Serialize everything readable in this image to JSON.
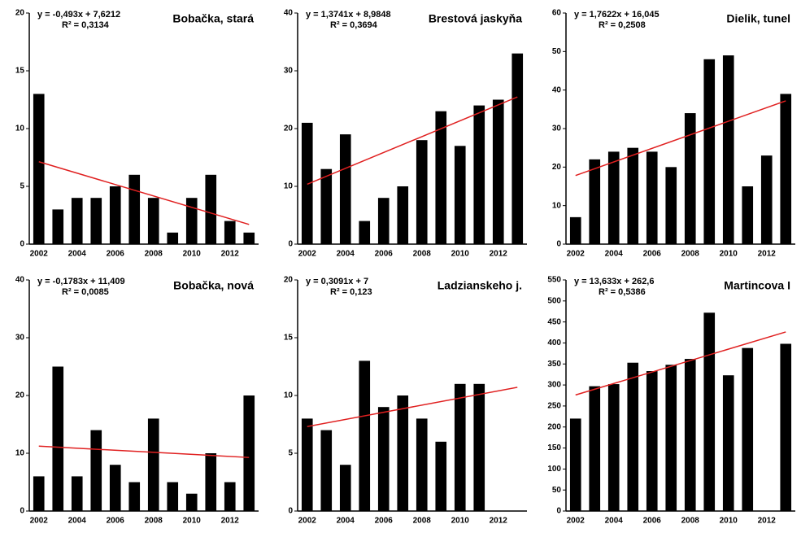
{
  "chart_data": [
    {
      "type": "bar",
      "title": "Bobačka, stará",
      "equation": "y = -0,493x + 7,6212",
      "r2": "R² = 0,3134",
      "categories": [
        "2002",
        null,
        "2004",
        null,
        "2006",
        null,
        "2008",
        null,
        "2010",
        null,
        "2012",
        null
      ],
      "values": [
        13,
        3,
        4,
        4,
        5,
        6,
        4,
        1,
        4,
        6,
        2,
        1
      ],
      "color": "#000000",
      "ylim": [
        0,
        20
      ],
      "yticks": [
        0,
        5,
        10,
        15,
        20
      ],
      "trendline": {
        "slope": -0.493,
        "intercept": 7.6212,
        "color": "#e02020"
      }
    },
    {
      "type": "bar",
      "title": "Brestová jaskyňa",
      "equation": "y = 1,3741x + 8,9848",
      "r2": "R² = 0,3694",
      "categories": [
        "2002",
        null,
        "2004",
        null,
        "2006",
        null,
        "2008",
        null,
        "2010",
        null,
        "2012",
        null
      ],
      "values": [
        21,
        13,
        19,
        4,
        8,
        10,
        18,
        23,
        17,
        24,
        25,
        33
      ],
      "color": "#000000",
      "ylim": [
        0,
        40
      ],
      "yticks": [
        0,
        10,
        20,
        30,
        40
      ],
      "trendline": {
        "slope": 1.3741,
        "intercept": 8.9848,
        "color": "#e02020"
      }
    },
    {
      "type": "bar",
      "title": "Dielik, tunel",
      "equation": "y = 1,7622x + 16,045",
      "r2": "R² = 0,2508",
      "categories": [
        "2002",
        null,
        "2004",
        null,
        "2006",
        null,
        "2008",
        null,
        "2010",
        null,
        "2012",
        null
      ],
      "values": [
        7,
        22,
        24,
        25,
        24,
        20,
        34,
        48,
        49,
        15,
        23,
        39
      ],
      "color": "#000000",
      "ylim": [
        0,
        60
      ],
      "yticks": [
        0,
        10,
        20,
        30,
        40,
        50,
        60
      ],
      "trendline": {
        "slope": 1.7622,
        "intercept": 16.045,
        "color": "#e02020"
      }
    },
    {
      "type": "bar",
      "title": "Bobačka, nová",
      "equation": "y = -0,1783x + 11,409",
      "r2": "R² = 0,0085",
      "categories": [
        "2002",
        null,
        "2004",
        null,
        "2006",
        null,
        "2008",
        null,
        "2010",
        null,
        "2012",
        null
      ],
      "values": [
        6,
        25,
        6,
        14,
        8,
        5,
        16,
        5,
        3,
        10,
        5,
        20
      ],
      "color": "#000000",
      "ylim": [
        0,
        40
      ],
      "yticks": [
        0,
        10,
        20,
        30,
        40
      ],
      "trendline": {
        "slope": -0.1783,
        "intercept": 11.409,
        "color": "#e02020"
      }
    },
    {
      "type": "bar",
      "title": "Ladzianskeho j.",
      "equation": "y = 0,3091x + 7",
      "r2": "R² = 0,123",
      "categories": [
        "2002",
        null,
        "2004",
        null,
        "2006",
        null,
        "2008",
        null,
        "2010",
        null,
        "2012",
        null
      ],
      "values": [
        8,
        7,
        4,
        13,
        9,
        10,
        8,
        6,
        11,
        11,
        null,
        null
      ],
      "color": "#000000",
      "ylim": [
        0,
        20
      ],
      "yticks": [
        0,
        5,
        10,
        15,
        20
      ],
      "trendline": {
        "slope": 0.3091,
        "intercept": 7,
        "color": "#e02020"
      }
    },
    {
      "type": "bar",
      "title": "Martincova I",
      "equation": "y = 13,633x + 262,6",
      "r2": "R² = 0,5386",
      "categories": [
        "2002",
        null,
        "2004",
        null,
        "2006",
        null,
        "2008",
        null,
        "2010",
        null,
        "2012",
        null
      ],
      "values": [
        220,
        297,
        302,
        353,
        333,
        348,
        362,
        472,
        323,
        388,
        null,
        398
      ],
      "color": "#000000",
      "ylim": [
        0,
        550
      ],
      "yticks": [
        0,
        50,
        100,
        150,
        200,
        250,
        300,
        350,
        400,
        450,
        500,
        550
      ],
      "trendline": {
        "slope": 13.633,
        "intercept": 262.6,
        "color": "#e02020"
      }
    }
  ]
}
